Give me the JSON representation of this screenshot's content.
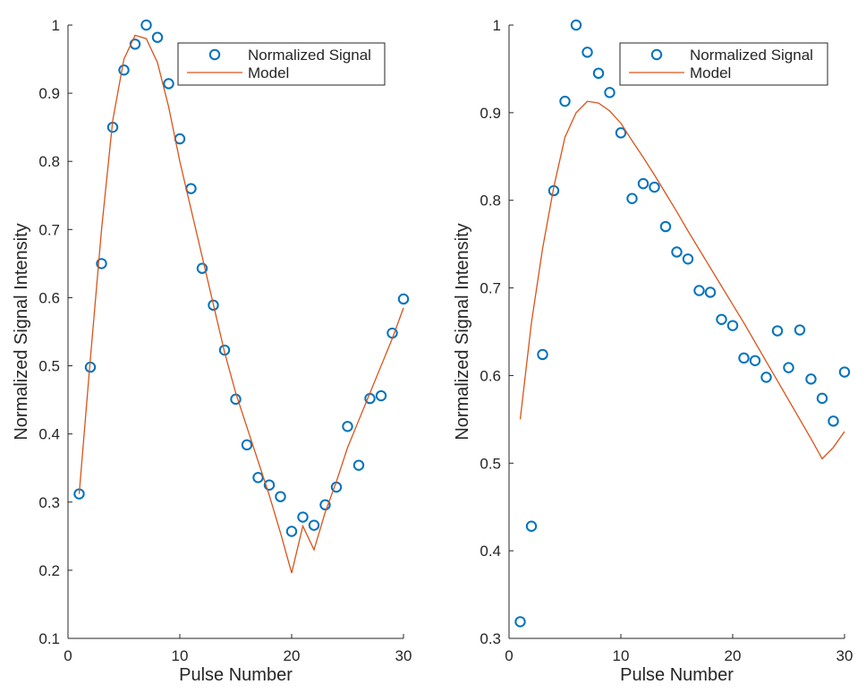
{
  "colors": {
    "marker": "#0072BD",
    "model": "#D95319",
    "axis": "#262626"
  },
  "chart_data": [
    {
      "type": "scatter",
      "title": "",
      "xlabel": "Pulse Number",
      "ylabel": "Normalized Signal Intensity",
      "xlim": [
        0,
        30
      ],
      "ylim": [
        0.1,
        1.0
      ],
      "xticks": [
        0,
        10,
        20,
        30
      ],
      "yticks": [
        0.1,
        0.2,
        0.3,
        0.4,
        0.5,
        0.6,
        0.7,
        0.8,
        0.9,
        1.0
      ],
      "ytick_labels": [
        "0.1",
        "0.2",
        "0.3",
        "0.4",
        "0.5",
        "0.6",
        "0.7",
        "0.8",
        "0.9",
        "1"
      ],
      "legend_position": "top-right",
      "series": [
        {
          "name": "Normalized Signal",
          "kind": "markers",
          "x": [
            1,
            2,
            3,
            4,
            5,
            6,
            7,
            8,
            9,
            10,
            11,
            12,
            13,
            14,
            15,
            16,
            17,
            18,
            19,
            20,
            21,
            22,
            23,
            24,
            25,
            26,
            27,
            28,
            29,
            30
          ],
          "values": [
            0.312,
            0.498,
            0.65,
            0.85,
            0.934,
            0.972,
            1.0,
            0.982,
            0.914,
            0.833,
            0.76,
            0.643,
            0.589,
            0.523,
            0.451,
            0.384,
            0.336,
            0.325,
            0.308,
            0.257,
            0.278,
            0.266,
            0.296,
            0.322,
            0.411,
            0.354,
            0.452,
            0.456,
            0.548,
            0.598
          ]
        },
        {
          "name": "Model",
          "kind": "line",
          "x": [
            1,
            2,
            3,
            4,
            5,
            6,
            7,
            8,
            9,
            10,
            11,
            12,
            13,
            14,
            15,
            16,
            17,
            18,
            19,
            20,
            21,
            22,
            23,
            24,
            25,
            26,
            27,
            28,
            29,
            30
          ],
          "values": [
            0.312,
            0.51,
            0.7,
            0.86,
            0.95,
            0.985,
            0.98,
            0.945,
            0.88,
            0.8,
            0.73,
            0.66,
            0.59,
            0.52,
            0.46,
            0.41,
            0.36,
            0.31,
            0.255,
            0.196,
            0.265,
            0.23,
            0.285,
            0.33,
            0.38,
            0.42,
            0.46,
            0.5,
            0.54,
            0.585
          ]
        }
      ]
    },
    {
      "type": "scatter",
      "title": "",
      "xlabel": "Pulse Number",
      "ylabel": "Normalized Signal Intensity",
      "xlim": [
        0,
        30
      ],
      "ylim": [
        0.3,
        1.0
      ],
      "xticks": [
        0,
        10,
        20,
        30
      ],
      "yticks": [
        0.3,
        0.4,
        0.5,
        0.6,
        0.7,
        0.8,
        0.9,
        1.0
      ],
      "ytick_labels": [
        "0.3",
        "0.4",
        "0.5",
        "0.6",
        "0.7",
        "0.8",
        "0.9",
        "1"
      ],
      "legend_position": "top-right",
      "series": [
        {
          "name": "Normalized Signal",
          "kind": "markers",
          "x": [
            1,
            2,
            3,
            4,
            5,
            6,
            7,
            8,
            9,
            10,
            11,
            12,
            13,
            14,
            15,
            16,
            17,
            18,
            19,
            20,
            21,
            22,
            23,
            24,
            25,
            26,
            27,
            28,
            29,
            30
          ],
          "values": [
            0.319,
            0.428,
            0.624,
            0.811,
            0.913,
            1.0,
            0.969,
            0.945,
            0.923,
            0.877,
            0.802,
            0.819,
            0.815,
            0.77,
            0.741,
            0.733,
            0.697,
            0.695,
            0.664,
            0.657,
            0.62,
            0.617,
            0.598,
            0.651,
            0.609,
            0.652,
            0.596,
            0.574,
            0.548,
            0.604
          ]
        },
        {
          "name": "Model",
          "kind": "line",
          "x": [
            1,
            2,
            3,
            4,
            5,
            6,
            7,
            8,
            9,
            10,
            11,
            12,
            13,
            14,
            15,
            16,
            17,
            18,
            19,
            20,
            21,
            22,
            23,
            24,
            25,
            26,
            27,
            28,
            29,
            30
          ],
          "values": [
            0.55,
            0.66,
            0.745,
            0.815,
            0.872,
            0.9,
            0.913,
            0.911,
            0.902,
            0.888,
            0.868,
            0.849,
            0.829,
            0.808,
            0.787,
            0.765,
            0.744,
            0.723,
            0.702,
            0.681,
            0.66,
            0.638,
            0.616,
            0.594,
            0.572,
            0.55,
            0.528,
            0.505,
            0.518,
            0.536
          ]
        }
      ]
    }
  ]
}
